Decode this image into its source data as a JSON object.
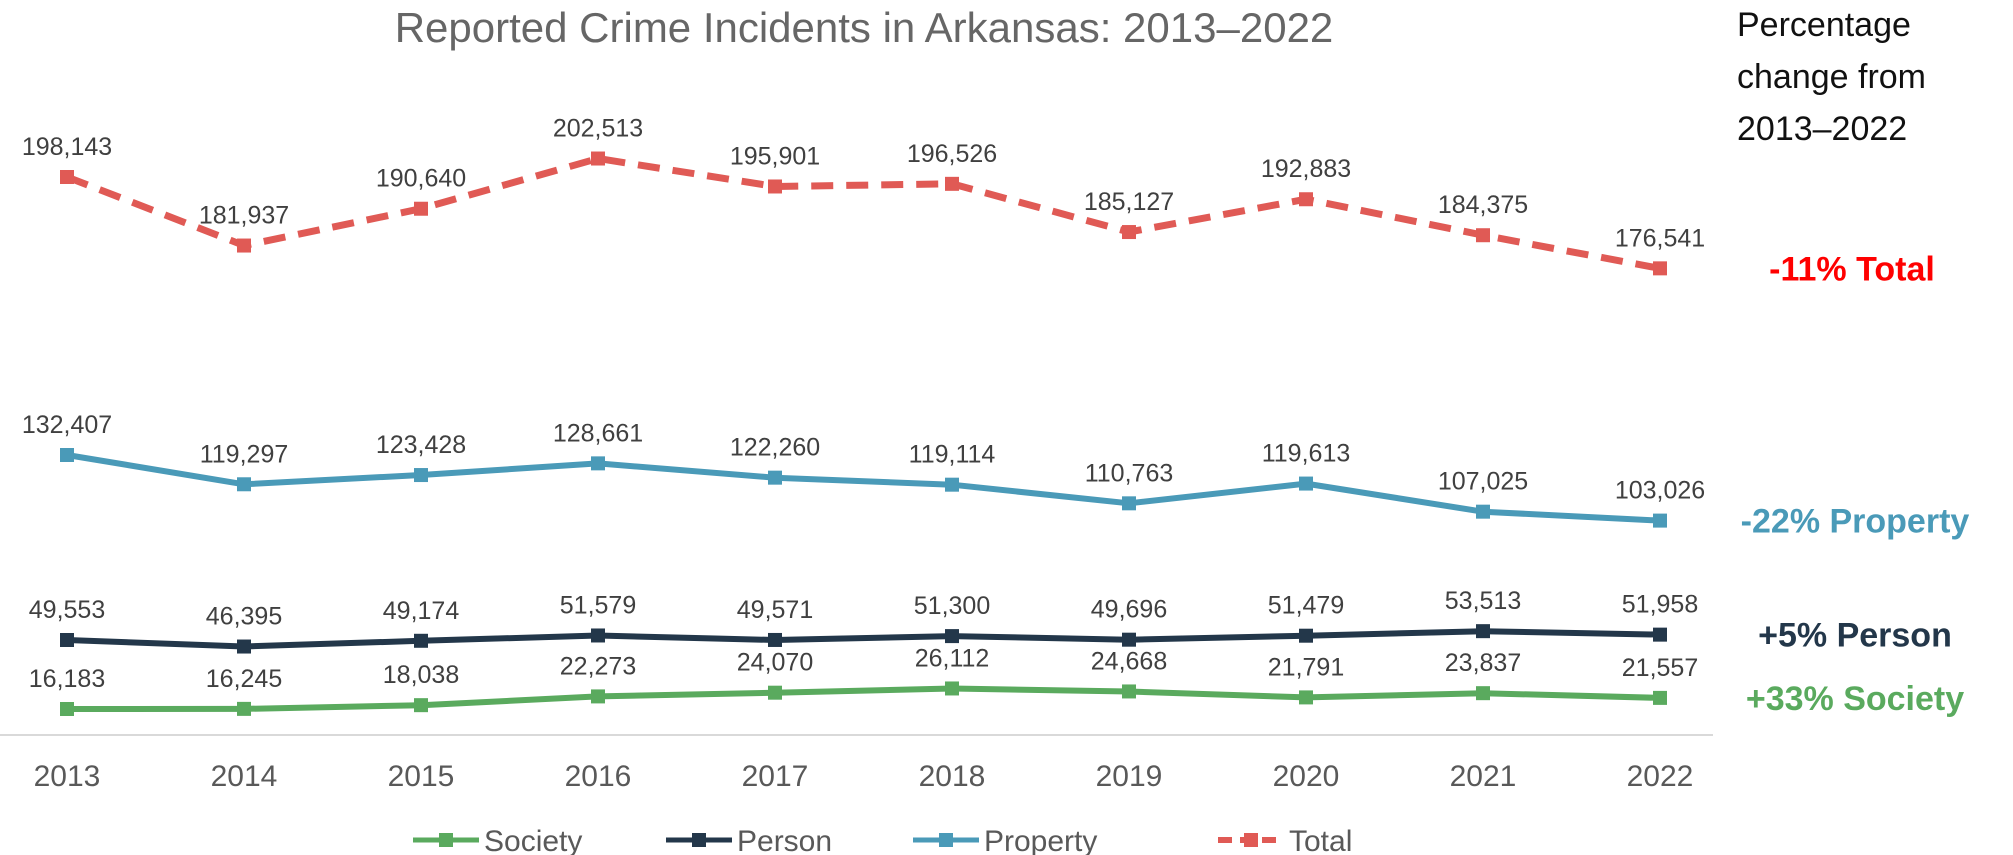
{
  "chart_data": {
    "type": "line",
    "title": "Reported Crime Incidents in Arkansas: 2013–2022",
    "categories": [
      "2013",
      "2014",
      "2015",
      "2016",
      "2017",
      "2018",
      "2019",
      "2020",
      "2021",
      "2022"
    ],
    "series": [
      {
        "name": "Society",
        "color": "#5aaa5e",
        "dash": false,
        "values": [
          16183,
          16245,
          18038,
          22273,
          24070,
          26112,
          24668,
          21791,
          23837,
          21557
        ],
        "labels": [
          "16,183",
          "16,245",
          "18,038",
          "22,273",
          "24,070",
          "26,112",
          "24,668",
          "21,791",
          "23,837",
          "21,557"
        ]
      },
      {
        "name": "Person",
        "color": "#23374a",
        "dash": false,
        "values": [
          49553,
          46395,
          49174,
          51579,
          49571,
          51300,
          49696,
          51479,
          53513,
          51958
        ],
        "labels": [
          "49,553",
          "46,395",
          "49,174",
          "51,579",
          "49,571",
          "51,300",
          "49,696",
          "51,479",
          "53,513",
          "51,958"
        ]
      },
      {
        "name": "Property",
        "color": "#4a9ab8",
        "dash": false,
        "values": [
          132407,
          119297,
          123428,
          128661,
          122260,
          119114,
          110763,
          119613,
          107025,
          103026
        ],
        "labels": [
          "132,407",
          "119,297",
          "123,428",
          "128,661",
          "122,260",
          "119,114",
          "110,763",
          "119,613",
          "107,025",
          "103,026"
        ]
      },
      {
        "name": "Total",
        "color": "#e05a55",
        "dash": true,
        "values": [
          198143,
          181937,
          190640,
          202513,
          195901,
          196526,
          185127,
          192883,
          184375,
          176541
        ],
        "labels": [
          "198,143",
          "181,937",
          "190,640",
          "202,513",
          "195,901",
          "196,526",
          "185,127",
          "192,883",
          "184,375",
          "176,541"
        ]
      }
    ],
    "grid": false,
    "legend_position": "bottom"
  },
  "side_panel": {
    "title_lines": [
      "Percentage",
      "change from",
      "2013–2022"
    ],
    "changes": [
      {
        "series": "Total",
        "text": "-11% Total",
        "color": "#ff0000"
      },
      {
        "series": "Property",
        "text": "-22% Property",
        "color": "#4a9ab8"
      },
      {
        "series": "Person",
        "text": "+5% Person",
        "color": "#23374a"
      },
      {
        "series": "Society",
        "text": "+33% Society",
        "color": "#5aaa5e"
      }
    ]
  }
}
